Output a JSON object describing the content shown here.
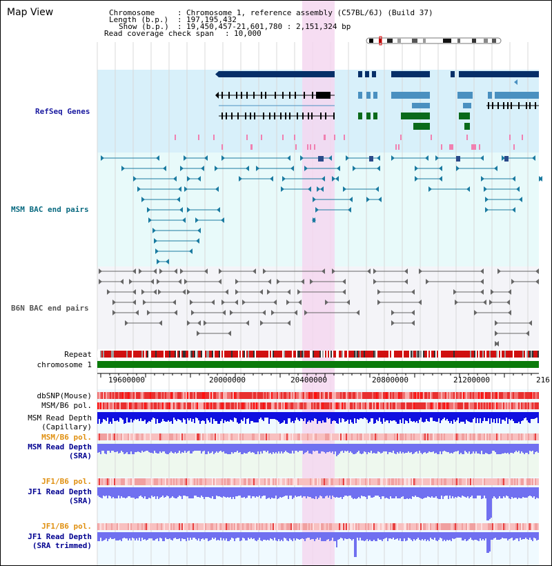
{
  "title": "Map View",
  "info": {
    "chromosome_label": "Chromosome",
    "chromosome_value": "Chromosome 1, reference assembly (C57BL/6J) (Build 37)",
    "length_label": "Length (b.p.)",
    "length_value": "197,195,432",
    "show_label": "Show (b.p.)",
    "show_value": "19,450,457-21,601,780 : 2,151,324 bp",
    "coverage_label": "Read coverage check span",
    "coverage_value": "10,000"
  },
  "tracks": {
    "refseq": "RefSeq Genes",
    "msm_bac": "MSM BAC end pairs",
    "b6n_bac": "B6N BAC end pairs",
    "repeat": "Repeat",
    "chromosome": "chromosome 1",
    "dbsnp": "dbSNP(Mouse)",
    "msm_b6_pol_1": "MSM/B6 pol.",
    "msm_read_depth_cap_1": "MSM Read Depth",
    "msm_read_depth_cap_2": "(Capillary)",
    "msm_b6_pol_2": "MSM/B6 pol.",
    "msm_read_depth_sra_1": "MSM Read Depth",
    "msm_read_depth_sra_2": "(SRA)",
    "jf1_b6_pol_1": "JF1/B6 pol.",
    "jf1_read_depth_sra_1": "JF1 Read Depth",
    "jf1_read_depth_sra_2": "(SRA)",
    "jf1_b6_pol_2": "JF1/B6 pol.",
    "jf1_read_depth_trim_1": "JF1 Read Depth",
    "jf1_read_depth_trim_2": "(SRA trimmed)"
  },
  "axis": {
    "ticks": [
      "19600000",
      "20000000",
      "20400000",
      "20800000",
      "21200000",
      "216"
    ]
  },
  "colors": {
    "refseq_bg": "#d8f0fa",
    "bac_bg": "#e8fafa",
    "b6n_bg": "#f4f4f8",
    "highlight": "#f5d7f0",
    "gene_dark": "#062f68",
    "gene_mid": "#4a90c0",
    "gene_green": "#0a6a1a",
    "chromosome_bar": "#0a7a0a",
    "depth_blue": "#1010e0",
    "depth_light": "#7070f0",
    "msm_pol_label": "#e09010",
    "depth_label": "#000090"
  }
}
